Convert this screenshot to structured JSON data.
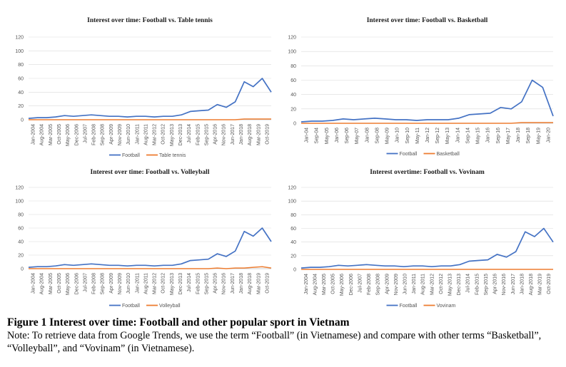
{
  "figure": {
    "title": "Figure 1 Interest over time: Football and other popular sport in Vietnam",
    "note": "Note: To retrieve data from Google Trends, we use the term “Football” (in Vietnamese) and compare with other terms “Basketball”, “Volleyball”, and “Vovinam” (in Vietnamese)."
  },
  "colors": {
    "football": "#4472c4",
    "other": "#ed7d31"
  },
  "chart_data": [
    {
      "type": "line",
      "title": "Interest over time: Football vs. Table tennis",
      "ylim": [
        0,
        120
      ],
      "yticks": [
        0,
        20,
        40,
        60,
        80,
        100,
        120
      ],
      "grid": true,
      "legend": "bottom",
      "x": [
        "Jan-2004",
        "Aug-2004",
        "Mar-2005",
        "Oct-2005",
        "May-2006",
        "Dec-2006",
        "Jul-2007",
        "Feb-2008",
        "Sep-2008",
        "Apr-2009",
        "Nov-2009",
        "Jun-2010",
        "Jan-2011",
        "Aug-2011",
        "Mar-2012",
        "Oct-2012",
        "May-2013",
        "Dec-2013",
        "Jul-2014",
        "Feb-2015",
        "Sep-2015",
        "Apr-2016",
        "Nov-2016",
        "Jun-2017",
        "Jan-2018",
        "Aug-2018",
        "Mar-2019",
        "Oct-2019"
      ],
      "series": [
        {
          "name": "Football",
          "values": [
            2,
            3,
            3,
            4,
            6,
            5,
            6,
            7,
            6,
            5,
            5,
            4,
            5,
            5,
            4,
            5,
            5,
            7,
            12,
            13,
            14,
            22,
            18,
            26,
            55,
            48,
            60,
            40
          ]
        },
        {
          "name": "Table tennis",
          "values": [
            0,
            0,
            0,
            0,
            0,
            0,
            0,
            0,
            0,
            0,
            0,
            0,
            0,
            0,
            0,
            0,
            0,
            0,
            0,
            0,
            0,
            0,
            0,
            0,
            1,
            1,
            1,
            1
          ]
        }
      ]
    },
    {
      "type": "line",
      "title": "Interest over time: Football vs. Basketball",
      "ylim": [
        0,
        120
      ],
      "yticks": [
        0,
        20,
        40,
        60,
        80,
        100,
        120
      ],
      "grid": true,
      "legend": "bottom",
      "x": [
        "Jan-04",
        "Sep-04",
        "May-05",
        "Jan-06",
        "Sep-06",
        "May-07",
        "Jan-08",
        "Sep-08",
        "May-09",
        "Jan-10",
        "Sep-10",
        "May-11",
        "Jan-12",
        "Sep-12",
        "May-13",
        "Jan-14",
        "Sep-14",
        "May-15",
        "Jan-16",
        "Sep-16",
        "May-17",
        "Jan-18",
        "Sep-18",
        "May-19",
        "Jan-20"
      ],
      "series": [
        {
          "name": "Football",
          "values": [
            2,
            3,
            3,
            4,
            6,
            5,
            6,
            7,
            6,
            5,
            5,
            4,
            5,
            5,
            5,
            7,
            12,
            13,
            14,
            22,
            20,
            30,
            60,
            50,
            10
          ]
        },
        {
          "name": "Basketball",
          "values": [
            0,
            0,
            0,
            0,
            0,
            0,
            0,
            0,
            0,
            0,
            0,
            0,
            0,
            0,
            0,
            0,
            0,
            0,
            0,
            0,
            0,
            1,
            1,
            1,
            1
          ]
        }
      ]
    },
    {
      "type": "line",
      "title": "Interest over time: Football vs. Volleyball",
      "ylim": [
        0,
        120
      ],
      "yticks": [
        0,
        20,
        40,
        60,
        80,
        100,
        120
      ],
      "grid": true,
      "legend": "bottom",
      "x": [
        "Jan-2004",
        "Aug-2004",
        "Mar-2005",
        "Oct-2005",
        "May-2006",
        "Dec-2006",
        "Jul-2007",
        "Feb-2008",
        "Sep-2008",
        "Apr-2009",
        "Nov-2009",
        "Jun-2010",
        "Jan-2011",
        "Aug-2011",
        "Mar-2012",
        "Oct-2012",
        "May-2013",
        "Dec-2013",
        "Jul-2014",
        "Feb-2015",
        "Sep-2015",
        "Apr-2016",
        "Nov-2016",
        "Jun-2017",
        "Jan-2018",
        "Aug-2018",
        "Mar-2019",
        "Oct-2019"
      ],
      "series": [
        {
          "name": "Football",
          "values": [
            2,
            3,
            3,
            4,
            6,
            5,
            6,
            7,
            6,
            5,
            5,
            4,
            5,
            5,
            4,
            5,
            5,
            7,
            12,
            13,
            14,
            22,
            18,
            26,
            55,
            48,
            60,
            40
          ]
        },
        {
          "name": "Volleyball",
          "values": [
            0,
            0,
            0,
            0,
            0,
            0,
            0,
            0,
            0,
            0,
            0,
            0,
            0,
            0,
            0,
            0,
            0,
            0,
            0,
            0,
            0,
            1,
            0,
            1,
            1,
            2,
            3,
            1
          ]
        }
      ]
    },
    {
      "type": "line",
      "title": "Interest overtime: Football vs. Vovinam",
      "ylim": [
        0,
        120
      ],
      "yticks": [
        0,
        20,
        40,
        60,
        80,
        100,
        120
      ],
      "grid": true,
      "legend": "bottom",
      "x": [
        "Jan-2004",
        "Aug-2004",
        "Mar-2005",
        "Oct-2005",
        "May-2006",
        "Dec-2006",
        "Jul-2007",
        "Feb-2008",
        "Sep-2008",
        "Apr-2009",
        "Nov-2009",
        "Jun-2010",
        "Jan-2011",
        "Aug-2011",
        "Mar-2012",
        "Oct-2012",
        "May-2013",
        "Dec-2013",
        "Jul-2014",
        "Feb-2015",
        "Sep-2015",
        "Apr-2016",
        "Nov-2016",
        "Jun-2017",
        "Jan-2018",
        "Aug-2018",
        "Mar-2019",
        "Oct-2019"
      ],
      "series": [
        {
          "name": "Football",
          "values": [
            2,
            3,
            3,
            4,
            6,
            5,
            6,
            7,
            6,
            5,
            5,
            4,
            5,
            5,
            4,
            5,
            5,
            7,
            12,
            13,
            14,
            22,
            18,
            26,
            55,
            48,
            60,
            40
          ]
        },
        {
          "name": "Vovinam",
          "values": [
            0,
            0,
            0,
            0,
            0,
            0,
            0,
            0,
            0,
            0,
            0,
            0,
            0,
            0,
            0,
            0,
            0,
            0,
            0,
            0,
            0,
            0,
            0,
            0,
            0,
            0,
            0,
            0
          ]
        }
      ]
    }
  ]
}
